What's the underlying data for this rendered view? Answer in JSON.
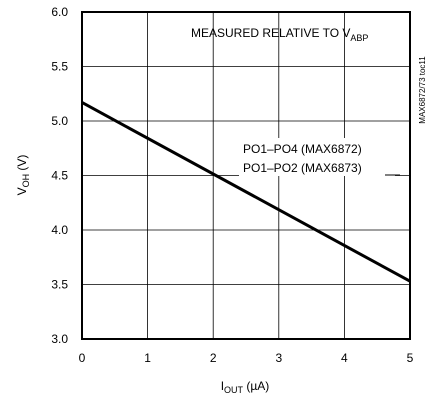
{
  "chart_data": {
    "type": "line",
    "xlabel": "IOUT (µA)",
    "xlabel_main": "I",
    "xlabel_sub": "OUT",
    "xlabel_rest": " (µA)",
    "ylabel": "VOH (V)",
    "ylabel_main": "V",
    "ylabel_sub": "OH",
    "ylabel_rest": " (V)",
    "xlim": [
      0,
      5
    ],
    "ylim": [
      3.0,
      6.0
    ],
    "xticks": [
      "0",
      "1",
      "2",
      "3",
      "4",
      "5"
    ],
    "yticks": [
      "3.0",
      "3.5",
      "4.0",
      "4.5",
      "5.0",
      "5.5",
      "6.0"
    ],
    "grid": true,
    "annotation": "MEASURED RELATIVE TO VABP",
    "annotation_main": "MEASURED RELATIVE TO V",
    "annotation_sub": "ABP",
    "series": [
      {
        "name": "PO1–PO4 (MAX6872) / PO1–PO2 (MAX6873)",
        "label_line1": "PO1–PO4 (MAX6872)",
        "label_line2": "PO1–PO2 (MAX6873)",
        "x": [
          0,
          5
        ],
        "y": [
          5.17,
          3.53
        ]
      }
    ],
    "part_number": "MAX6872/73 toc11"
  }
}
